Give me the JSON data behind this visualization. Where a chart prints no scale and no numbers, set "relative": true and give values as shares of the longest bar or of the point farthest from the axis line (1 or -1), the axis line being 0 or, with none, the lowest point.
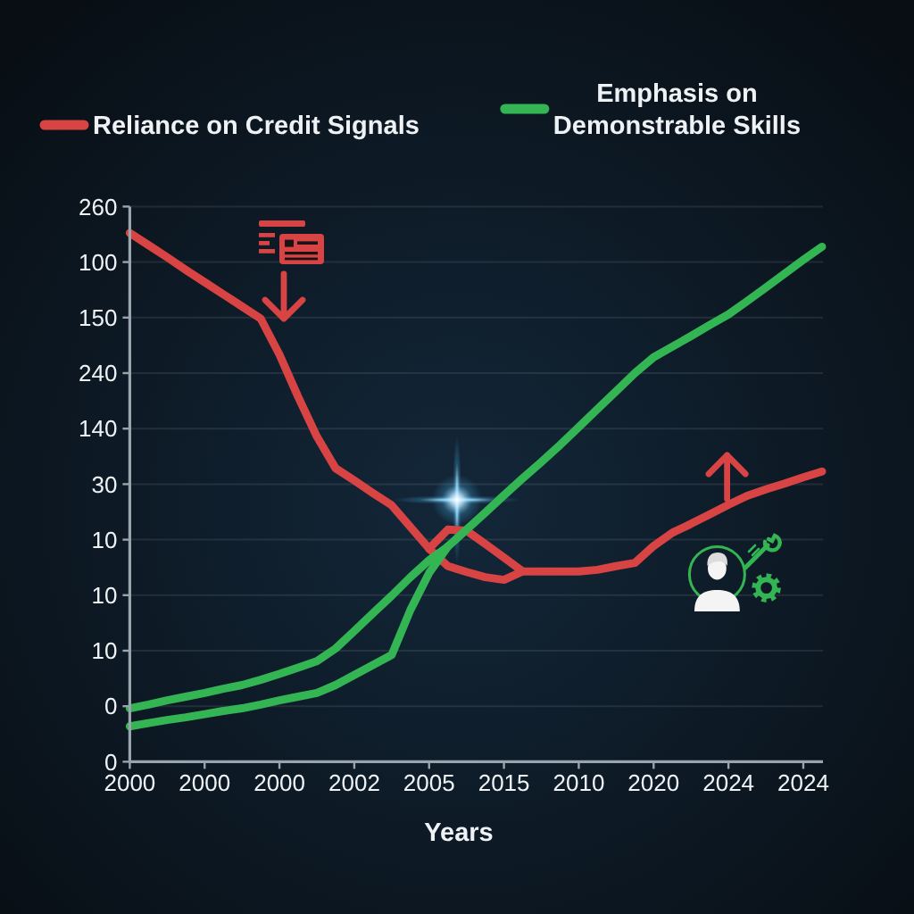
{
  "chart_data": {
    "type": "line",
    "xlabel": "Years",
    "relative": true,
    "categories": [
      "2000",
      null,
      null,
      null,
      "2000",
      null,
      null,
      null,
      "2000",
      null,
      null,
      null,
      "2002",
      null,
      null,
      null,
      "2005",
      null,
      null,
      null,
      "2015",
      null,
      null,
      null,
      "2010",
      null,
      null,
      null,
      "2020",
      null,
      null,
      null,
      "2024",
      null,
      null,
      null,
      "2024",
      null
    ],
    "annotations": [
      "260",
      "100",
      "150",
      "240",
      "140",
      "30",
      "10",
      "10",
      "10",
      "0",
      "0"
    ],
    "grid": "y",
    "legend": "top",
    "series": [
      {
        "name": "Reliance on Credit Signals",
        "color": "#d84343",
        "values": [
          1.0,
          0.977,
          0.954,
          0.93,
          0.907,
          0.884,
          0.861,
          0.838,
          0.77,
          0.69,
          0.615,
          0.555,
          0.532,
          0.508,
          0.485,
          0.444,
          0.403,
          0.37,
          0.359,
          0.349,
          0.344,
          0.36,
          0.36,
          0.36,
          0.36,
          0.363,
          0.37,
          0.376,
          0.408,
          0.433,
          0.45,
          0.468,
          0.486,
          0.503,
          0.515,
          0.526,
          0.538,
          0.549
        ]
      },
      {
        "color": "#d84343",
        "values": [
          null,
          null,
          null,
          null,
          null,
          null,
          null,
          null,
          null,
          null,
          null,
          null,
          null,
          null,
          null,
          null,
          0.403,
          0.439,
          0.437,
          0.412,
          0.386,
          0.36,
          null,
          null,
          null,
          null,
          null,
          null,
          null,
          null,
          null,
          null,
          null,
          null,
          null,
          null,
          null,
          null
        ]
      },
      {
        "name": "Emphasis on Demonstrable Skills",
        "color": "#34b553",
        "values": [
          0.101,
          0.108,
          0.116,
          0.123,
          0.13,
          0.138,
          0.145,
          0.155,
          0.166,
          0.178,
          0.19,
          0.214,
          0.247,
          0.281,
          0.314,
          0.349,
          0.381,
          0.407,
          0.439,
          0.471,
          0.504,
          0.536,
          0.567,
          0.599,
          0.633,
          0.667,
          0.701,
          0.735,
          0.765,
          0.785,
          0.805,
          0.826,
          0.846,
          0.871,
          0.897,
          0.923,
          0.949,
          0.974
        ]
      },
      {
        "color": "#34b553",
        "values": [
          0.067,
          0.073,
          0.079,
          0.084,
          0.09,
          0.096,
          0.101,
          0.108,
          0.116,
          0.123,
          0.13,
          0.145,
          0.164,
          0.183,
          0.202,
          0.287,
          0.357,
          0.407,
          null,
          null,
          null,
          null,
          null,
          null,
          null,
          null,
          null,
          null,
          null,
          null,
          null,
          null,
          null,
          null,
          null,
          null,
          null,
          null
        ]
      }
    ]
  }
}
